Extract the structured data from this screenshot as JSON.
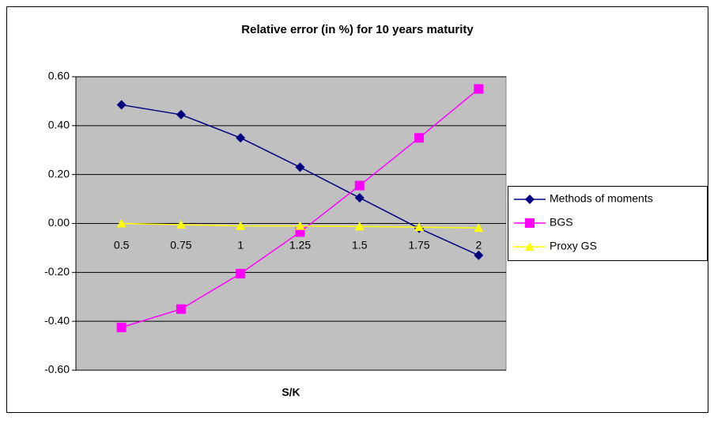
{
  "chart_data": {
    "type": "line",
    "title": "Relative error (in %) for 10 years maturity",
    "x_label": "S/K",
    "categories": [
      "0.5",
      "0.75",
      "1",
      "1.25",
      "1.5",
      "1.75",
      "2"
    ],
    "series": [
      {
        "name": "Methods of moments",
        "color": "#000080",
        "marker": "diamond",
        "values": [
          0.485,
          0.445,
          0.35,
          0.23,
          0.105,
          -0.02,
          -0.13
        ]
      },
      {
        "name": "BGS",
        "color": "#ff00ff",
        "marker": "square",
        "values": [
          -0.425,
          -0.35,
          -0.205,
          -0.035,
          0.155,
          0.35,
          0.55
        ]
      },
      {
        "name": "Proxy GS",
        "color": "#ffff00",
        "marker": "triangle",
        "values": [
          0.0,
          -0.005,
          -0.01,
          -0.01,
          -0.012,
          -0.015,
          -0.018
        ]
      }
    ],
    "ylim": [
      -0.6,
      0.6
    ],
    "yticks": [
      {
        "value": -0.6,
        "label": "-0.60"
      },
      {
        "value": -0.4,
        "label": "-0.40"
      },
      {
        "value": -0.2,
        "label": "-0.20"
      },
      {
        "value": 0,
        "label": "0.00"
      },
      {
        "value": 0.2,
        "label": "0.20"
      },
      {
        "value": 0.4,
        "label": "0.40"
      },
      {
        "value": 0.6,
        "label": "0.60"
      }
    ],
    "grid": true,
    "legend": "right"
  }
}
